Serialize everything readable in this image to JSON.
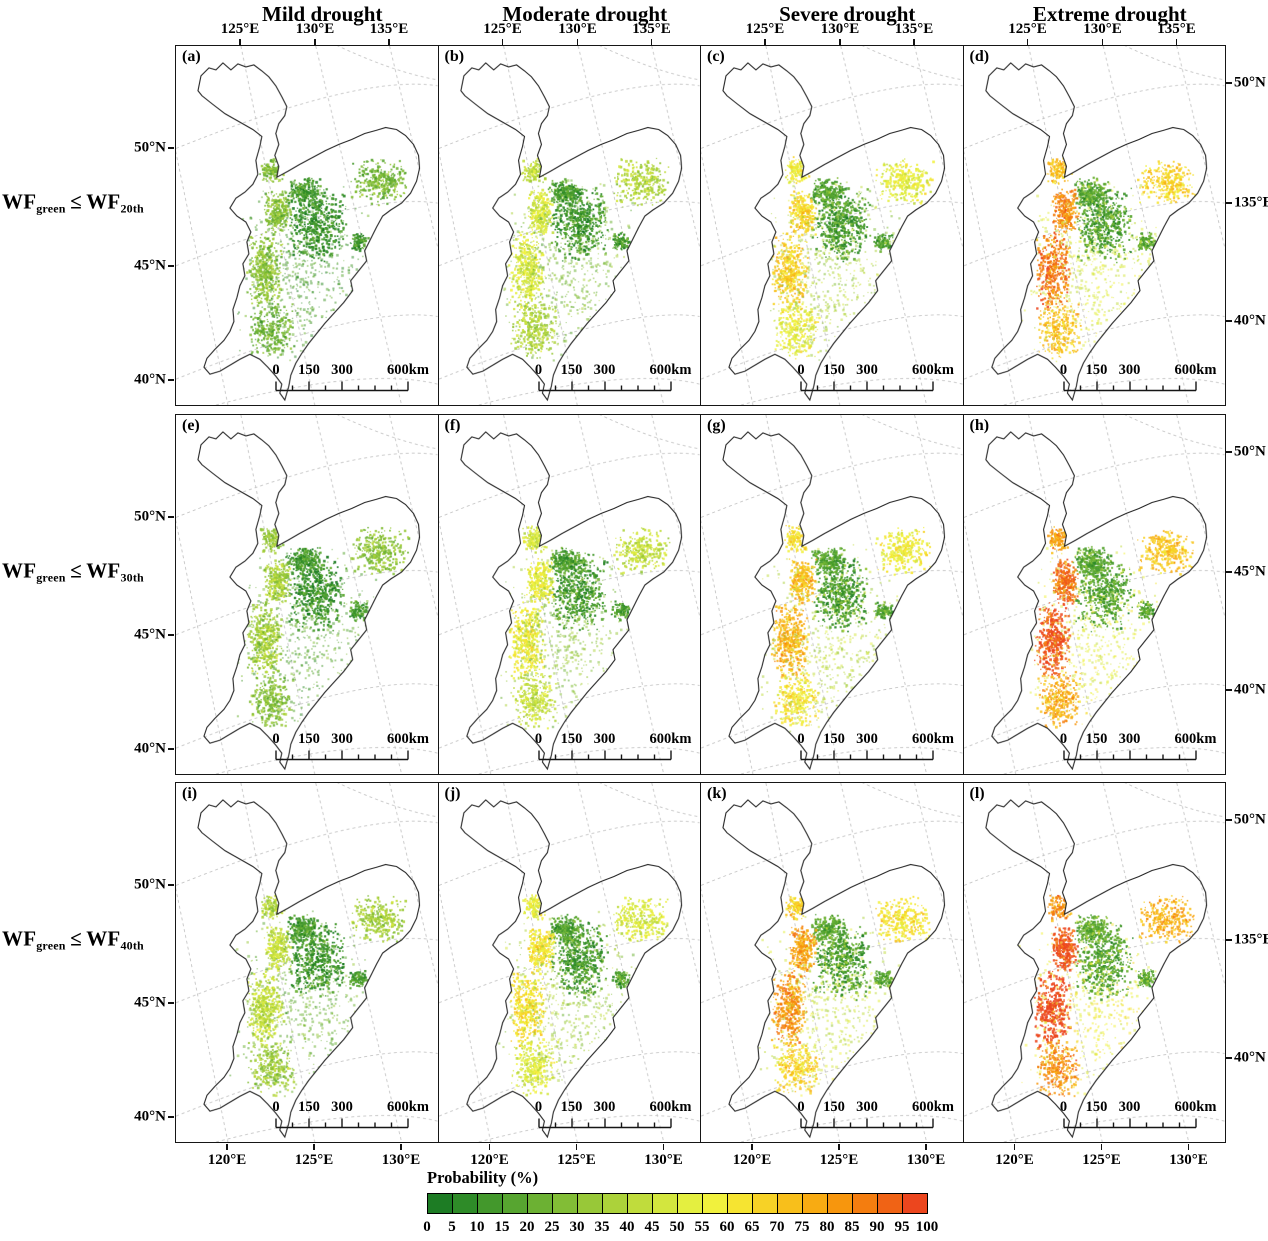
{
  "figure": {
    "column_titles": [
      "Mild drought",
      "Moderate drought",
      "Severe drought",
      "Extreme drought"
    ],
    "row_labels": [
      {
        "base": "WF",
        "base_sub": "green",
        "op": "≤",
        "comp": "WF",
        "comp_sub": "20th"
      },
      {
        "base": "WF",
        "base_sub": "green",
        "op": "≤",
        "comp": "WF",
        "comp_sub": "30th"
      },
      {
        "base": "WF",
        "base_sub": "green",
        "op": "≤",
        "comp": "WF",
        "comp_sub": "40th"
      }
    ],
    "panels": [
      {
        "label": "(a)",
        "row": 0,
        "col": 0
      },
      {
        "label": "(b)",
        "row": 0,
        "col": 1
      },
      {
        "label": "(c)",
        "row": 0,
        "col": 2
      },
      {
        "label": "(d)",
        "row": 0,
        "col": 3
      },
      {
        "label": "(e)",
        "row": 1,
        "col": 0
      },
      {
        "label": "(f)",
        "row": 1,
        "col": 1
      },
      {
        "label": "(g)",
        "row": 1,
        "col": 2
      },
      {
        "label": "(h)",
        "row": 1,
        "col": 3
      },
      {
        "label": "(i)",
        "row": 2,
        "col": 0
      },
      {
        "label": "(j)",
        "row": 2,
        "col": 1
      },
      {
        "label": "(k)",
        "row": 2,
        "col": 2
      },
      {
        "label": "(l)",
        "row": 2,
        "col": 3
      }
    ],
    "axes": {
      "top_ticks": [
        "125°E",
        "130°E",
        "135°E"
      ],
      "bottom_ticks": [
        "120°E",
        "125°E",
        "130°E"
      ],
      "left_ticks": [
        "50°N",
        "45°N",
        "40°N"
      ],
      "right_ticks_rows": [
        [
          "50°N",
          "135°E",
          "40°N"
        ],
        [
          "50°N",
          "45°N",
          "40°N"
        ],
        [
          "50°N",
          "135°E",
          "40°N"
        ]
      ]
    },
    "scalebar_labels": [
      "0",
      "150",
      "300",
      "600km"
    ],
    "colorbar": {
      "title": "Probability (%)",
      "ticks": [
        "0",
        "5",
        "10",
        "15",
        "20",
        "25",
        "30",
        "35",
        "40",
        "45",
        "50",
        "55",
        "60",
        "65",
        "70",
        "75",
        "80",
        "85",
        "90",
        "95",
        "100"
      ],
      "colors": [
        "#1d7c24",
        "#2e8b28",
        "#43982c",
        "#57a530",
        "#6cb133",
        "#82bd36",
        "#98c838",
        "#acd23a",
        "#c0dc3c",
        "#d3e63e",
        "#e4ef40",
        "#f1f13d",
        "#f6e431",
        "#f7d226",
        "#f8bf1b",
        "#f8ab12",
        "#f7960d",
        "#f47d0f",
        "#f06315",
        "#ec461e"
      ]
    }
  }
}
